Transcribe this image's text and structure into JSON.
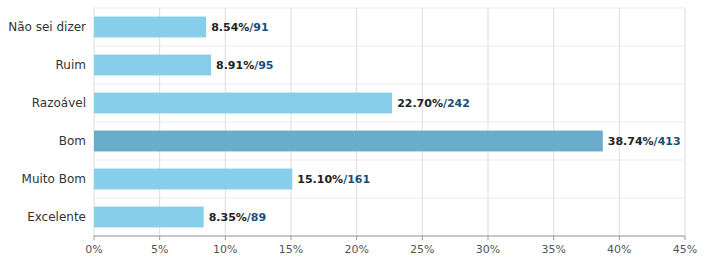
{
  "chart_data": {
    "type": "bar",
    "orientation": "horizontal",
    "categories": [
      "Excelente",
      "Muito Bom",
      "Bom",
      "Razoável",
      "Ruim",
      "Não sei dizer"
    ],
    "values": [
      8.35,
      15.1,
      38.74,
      22.7,
      8.91,
      8.54
    ],
    "value_labels": [
      "8.35%",
      "15.10%",
      "38.74%",
      "22.70%",
      "8.91%",
      "8.54%"
    ],
    "count_labels": [
      "/89",
      "/161",
      "/413",
      "/242",
      "/95",
      "/91"
    ],
    "colors": [
      "#87ceeb",
      "#87ceeb",
      "#6aadca",
      "#87ceeb",
      "#87ceeb",
      "#87ceeb"
    ],
    "xlim": [
      0,
      45
    ],
    "xticks": [
      {
        "value": 0,
        "label": "0%"
      },
      {
        "value": 5,
        "label": "5%"
      },
      {
        "value": 10,
        "label": "10%"
      },
      {
        "value": 15,
        "label": "15%"
      },
      {
        "value": 20,
        "label": "20%"
      },
      {
        "value": 25,
        "label": "25%"
      },
      {
        "value": 30,
        "label": "30%"
      },
      {
        "value": 35,
        "label": "35%"
      },
      {
        "value": 40,
        "label": "40%"
      },
      {
        "value": 45,
        "label": "45%"
      }
    ],
    "grid": true,
    "data_labels": true
  }
}
